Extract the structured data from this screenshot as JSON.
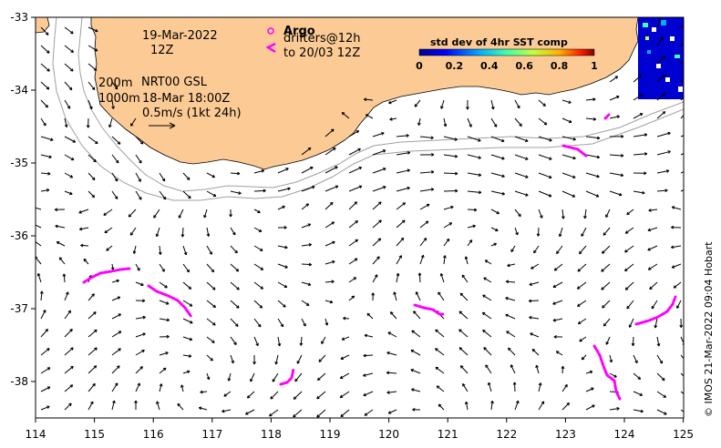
{
  "map": {
    "x_ticks": [
      "114",
      "115",
      "116",
      "117",
      "118",
      "119",
      "120",
      "121",
      "122",
      "123",
      "124",
      "125"
    ],
    "y_ticks": [
      "-33",
      "-34",
      "-35",
      "-36",
      "-37",
      "-38"
    ],
    "date_line1": "19-Mar-2022",
    "date_line2": "12Z",
    "depth_200": "200m",
    "depth_1000": "1000m",
    "product": "NRT00 GSL",
    "product_time": "18-Mar 18:00Z",
    "velocity_scale": "0.5m/s (1kt 24h)",
    "argo_label": "Argo",
    "drifters_label": "drifters@12h",
    "drifters_to": "to 20/03 12Z",
    "sst_title": "std dev of 4hr SST comp",
    "sst_ticks": [
      "0",
      "0.2",
      "0.4",
      "0.6",
      "0.8",
      "1"
    ],
    "credit": "© IMOS 21-Mar-2022 09:04 Hobart",
    "colors": {
      "land": "#fccb95",
      "drifter": "#ff00ff",
      "isobath": "#a0a0a0",
      "arrow": "#000000"
    }
  }
}
